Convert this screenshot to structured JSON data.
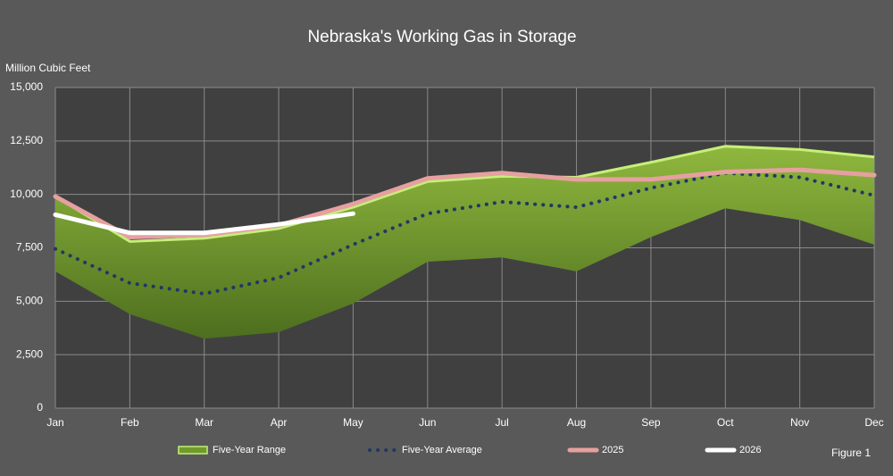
{
  "chart_data": {
    "type": "line",
    "title": "Nebraska's Working Gas in Storage",
    "y_label": "Million Cubic Feet",
    "note": "Figure 1",
    "categories": [
      "Jan",
      "Feb",
      "Mar",
      "Apr",
      "May",
      "Jun",
      "Jul",
      "Aug",
      "Sep",
      "Oct",
      "Nov",
      "Dec"
    ],
    "ylim": [
      0,
      15000
    ],
    "yticks": [
      0,
      {
        "value": 2500,
        "label": "2,500"
      },
      {
        "value": 5000,
        "label": "5,000"
      },
      {
        "value": 7500,
        "label": "7,500"
      },
      {
        "value": 10000,
        "label": "10,000"
      },
      {
        "value": 12500,
        "label": "12,500"
      },
      {
        "value": 15000,
        "label": "15,000"
      }
    ],
    "grid": true,
    "series": [
      {
        "name": "Five-Year Range",
        "color": "#6f9a2c",
        "high": [
          9900,
          7800,
          7950,
          8400,
          9400,
          10600,
          10850,
          10800,
          11500,
          12250,
          12100,
          11750
        ],
        "low": [
          6400,
          4400,
          3250,
          3550,
          4900,
          6850,
          7050,
          6400,
          8000,
          9350,
          8800,
          7650
        ]
      },
      {
        "name": "Five-Year Average",
        "color": "#1f3864",
        "values": [
          7450,
          5850,
          5350,
          6100,
          7650,
          9100,
          9650,
          9400,
          10300,
          11000,
          10800,
          9950
        ]
      },
      {
        "name": "2025",
        "color": "#e6a0a0",
        "values": [
          9900,
          8000,
          8100,
          8550,
          9550,
          10750,
          11000,
          10700,
          10700,
          11050,
          11150,
          10900
        ]
      },
      {
        "name": "2026",
        "color": "#ffffff",
        "values": [
          9050,
          8200,
          8200,
          8600,
          9100,
          null,
          null,
          null,
          null,
          null,
          null,
          null
        ]
      }
    ]
  }
}
